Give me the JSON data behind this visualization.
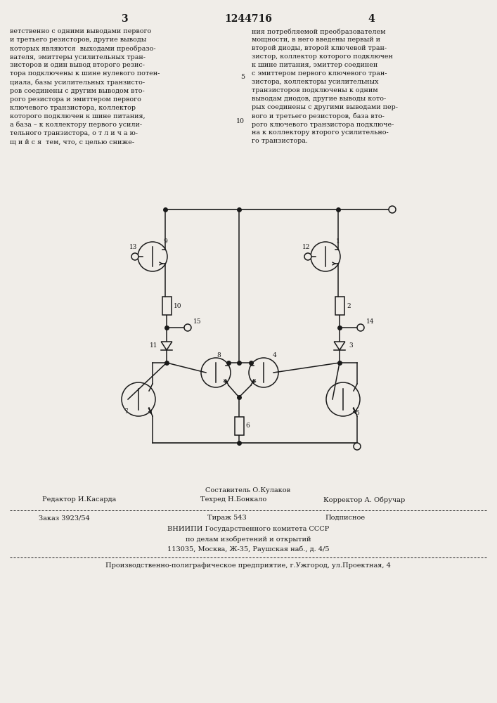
{
  "page_number_left": "3",
  "page_number_center": "1244716",
  "page_number_right": "4",
  "col_left_text": "ветственно с одними выводами первого\nи третьего резисторов, другие выводы\nкоторых являются  выходами преобразо-\nвателя, эмиттеры усилительных тран-\nзисторов и один вывод второго резис-\nтора подключены к шине нулевого потен-\nциала, базы усилительных транзисто-\nров соединены с другим выводом вто-\nрого резистора и эмиттером первого\nключевого транзистора, коллектор\nкоторого подключен к шине питания,\nа база – к коллектору первого усили-\nтельного транзистора, о т л и ч а ю-\nщ и й с я  тем, что, с целью сниже-",
  "col_right_text": "ния потребляемой преобразователем\nмощности, в него введены первый и\nвторой диоды, второй ключевой тран-\nзистор, коллектор которого подключен\nк шине питания, эмиттер соединен\nс эмиттером первого ключевого тран-\nзистора, коллекторы усилительных\nтранзисторов подключены к одним\nвыводам диодов, другие выводы кото-\nрых соединены с другими выводами пер-\nвого и третьего резисторов, база вто-\nрого ключевого транзистора подключе-\nна к коллектору второго усилительно-\nго транзистора.",
  "line_num_5": "5",
  "line_num_10": "10",
  "footer_composer": "Составитель О.Кулаков",
  "footer_editor_label": "Редактор И.Касарда",
  "footer_tech_label": "Техред Н.Бонкало",
  "footer_corrector_label": "Корректор А. Обручар",
  "footer_order": "Заказ 3923/54",
  "footer_print": "Тираж 543",
  "footer_subscription": "Подписное",
  "footer_org": "ВНИИПИ Государственного комитета СССР",
  "footer_dept": "по делам изобретений и открытий",
  "footer_addr": "113035, Москва, Ж-35, Раушская наб., д. 4/5",
  "footer_printer": "Производственно-полиграфическое предприятие, г.Ужгород, ул.Проектная, 4",
  "bg_color": "#f0ede8",
  "text_color": "#1a1a1a",
  "line_color": "#1a1a1a"
}
